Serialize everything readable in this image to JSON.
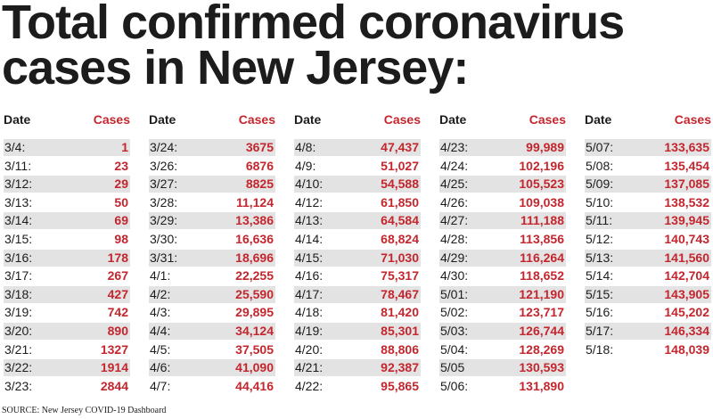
{
  "title_line1": "Total confirmed coronavirus",
  "title_line2": "cases in New Jersey:",
  "date_header": "Date",
  "cases_header": "Cases",
  "source": "SOURCE: New Jersey COVID-19 Dashboard",
  "colors": {
    "accent": "#c4262e",
    "shade": "#e3e3e3",
    "text": "#1c1c1c"
  },
  "columns": [
    [
      [
        "3/4:",
        "1"
      ],
      [
        "3/11:",
        "23"
      ],
      [
        "3/12:",
        "29"
      ],
      [
        "3/13:",
        "50"
      ],
      [
        "3/14:",
        "69"
      ],
      [
        "3/15:",
        "98"
      ],
      [
        "3/16:",
        "178"
      ],
      [
        "3/17:",
        "267"
      ],
      [
        "3/18:",
        "427"
      ],
      [
        "3/19:",
        "742"
      ],
      [
        "3/20:",
        "890"
      ],
      [
        "3/21:",
        "1327"
      ],
      [
        "3/22:",
        "1914"
      ],
      [
        "3/23:",
        "2844"
      ]
    ],
    [
      [
        "3/24:",
        "3675"
      ],
      [
        "3/26:",
        "6876"
      ],
      [
        "3/27:",
        "8825"
      ],
      [
        "3/28:",
        "11,124"
      ],
      [
        "3/29:",
        "13,386"
      ],
      [
        "3/30:",
        "16,636"
      ],
      [
        "3/31:",
        "18,696"
      ],
      [
        "4/1:",
        "22,255"
      ],
      [
        "4/2:",
        "25,590"
      ],
      [
        "4/3:",
        "29,895"
      ],
      [
        "4/4:",
        "34,124"
      ],
      [
        "4/5:",
        "37,505"
      ],
      [
        "4/6:",
        "41,090"
      ],
      [
        "4/7:",
        "44,416"
      ]
    ],
    [
      [
        "4/8:",
        "47,437"
      ],
      [
        "4/9:",
        "51,027"
      ],
      [
        "4/10:",
        "54,588"
      ],
      [
        "4/12:",
        "61,850"
      ],
      [
        "4/13:",
        "64,584"
      ],
      [
        "4/14:",
        "68,824"
      ],
      [
        "4/15:",
        "71,030"
      ],
      [
        "4/16:",
        "75,317"
      ],
      [
        "4/17:",
        "78,467"
      ],
      [
        "4/18:",
        "81,420"
      ],
      [
        "4/19:",
        "85,301"
      ],
      [
        "4/20:",
        "88,806"
      ],
      [
        "4/21:",
        "92,387"
      ],
      [
        "4/22:",
        "95,865"
      ]
    ],
    [
      [
        "4/23:",
        "99,989"
      ],
      [
        "4/24:",
        "102,196"
      ],
      [
        "4/25:",
        "105,523"
      ],
      [
        "4/26:",
        "109,038"
      ],
      [
        "4/27:",
        "111,188"
      ],
      [
        "4/28:",
        "113,856"
      ],
      [
        "4/29:",
        "116,264"
      ],
      [
        "4/30:",
        "118,652"
      ],
      [
        "5/01:",
        "121,190"
      ],
      [
        "5/02:",
        "123,717"
      ],
      [
        "5/03:",
        "126,744"
      ],
      [
        "5/04:",
        "128,269"
      ],
      [
        "5/05",
        "130,593"
      ],
      [
        "5/06:",
        "131,890"
      ]
    ],
    [
      [
        "5/07:",
        "133,635"
      ],
      [
        "5/08:",
        "135,454"
      ],
      [
        "5/09:",
        "137,085"
      ],
      [
        "5/10:",
        "138,532"
      ],
      [
        "5/11:",
        "139,945"
      ],
      [
        "5/12:",
        "140,743"
      ],
      [
        "5/13:",
        "141,560"
      ],
      [
        "5/14:",
        "142,704"
      ],
      [
        "5/15:",
        "143,905"
      ],
      [
        "5/16:",
        "145,202"
      ],
      [
        "5/17:",
        "146,334"
      ],
      [
        "5/18:",
        "148,039"
      ]
    ]
  ]
}
